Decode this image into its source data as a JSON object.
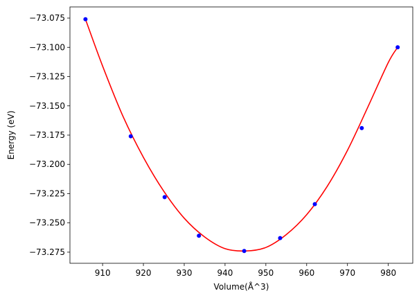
{
  "chart_data": {
    "type": "scatter",
    "title": "",
    "xlabel": "Volume(Å^3)",
    "ylabel": "Energy (eV)",
    "xlim": [
      902,
      986
    ],
    "ylim": [
      -73.2845,
      -73.0655
    ],
    "xticks": [
      910,
      920,
      930,
      940,
      950,
      960,
      970,
      980
    ],
    "xtick_labels": [
      "910",
      "920",
      "930",
      "940",
      "950",
      "960",
      "970",
      "980"
    ],
    "yticks": [
      -73.275,
      -73.25,
      -73.225,
      -73.2,
      -73.175,
      -73.15,
      -73.125,
      -73.1,
      -73.075
    ],
    "ytick_labels": [
      "−73.275",
      "−73.250",
      "−73.225",
      "−73.200",
      "−73.175",
      "−73.150",
      "−73.125",
      "−73.100",
      "−73.075"
    ],
    "grid": false,
    "legend": "none",
    "series": [
      {
        "kind": "points",
        "color": "#0000ff",
        "x": [
          905.8,
          916.9,
          925.2,
          933.6,
          944.7,
          953.5,
          962.0,
          973.5,
          982.3
        ],
        "y": [
          -73.076,
          -73.176,
          -73.228,
          -73.261,
          -73.274,
          -73.263,
          -73.234,
          -73.169,
          -73.1
        ]
      },
      {
        "kind": "fit-curve",
        "color": "#ff0000",
        "x": [
          905.8,
          910,
          915,
          920,
          925,
          930,
          935,
          940,
          945,
          950,
          955,
          960,
          965,
          970,
          975,
          980,
          982.3
        ],
        "y": [
          -73.076,
          -73.116,
          -73.159,
          -73.194,
          -73.223,
          -73.246,
          -73.262,
          -73.272,
          -73.274,
          -73.271,
          -73.26,
          -73.243,
          -73.219,
          -73.188,
          -73.151,
          -73.113,
          -73.1
        ]
      }
    ]
  }
}
